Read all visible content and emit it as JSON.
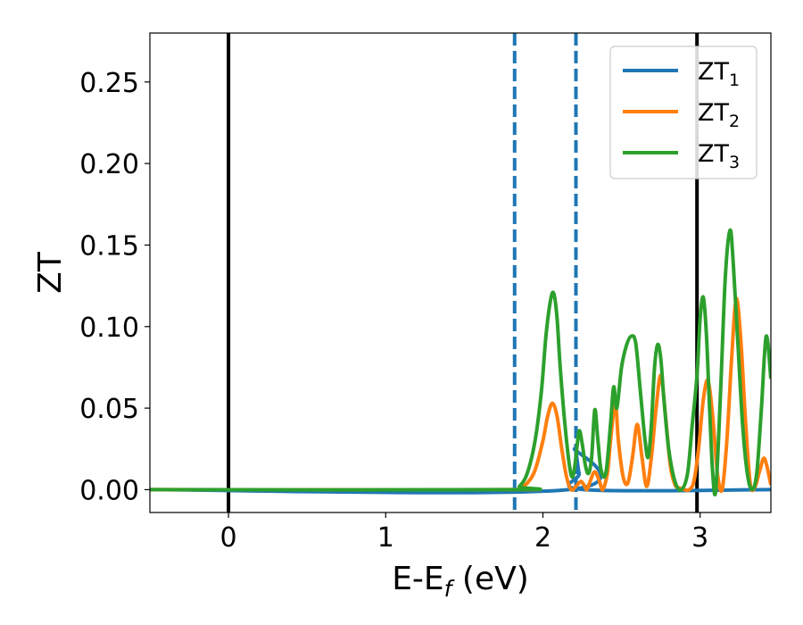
{
  "chart_data": {
    "type": "line",
    "xlabel": {
      "main": "E-E",
      "sub": "f",
      "suffix": " (eV)"
    },
    "ylabel": "ZT",
    "xlim": [
      -0.5,
      3.45
    ],
    "ylim": [
      -0.014,
      0.28
    ],
    "x_ticks": [
      0,
      1,
      2,
      3
    ],
    "x_tick_labels": [
      "0",
      "1",
      "2",
      "3"
    ],
    "y_ticks": [
      0.0,
      0.05,
      0.1,
      0.15,
      0.2,
      0.25
    ],
    "y_tick_labels": [
      "0.00",
      "0.05",
      "0.10",
      "0.15",
      "0.20",
      "0.25"
    ],
    "grid": false,
    "legend_position": "top-right",
    "vertical_lines": [
      {
        "x": 0.0,
        "style": "solid",
        "color": "#000000"
      },
      {
        "x": 2.98,
        "style": "solid",
        "color": "#000000"
      },
      {
        "x": 1.82,
        "style": "dashed",
        "color": "#1f77b4"
      },
      {
        "x": 2.21,
        "style": "dashed",
        "color": "#1f77b4"
      }
    ],
    "series": [
      {
        "name": "ZT",
        "sub": "1",
        "color": "#1f77b4",
        "x": [
          -0.5,
          2.16,
          2.2,
          2.23,
          2.26,
          3.45
        ],
        "y": [
          0.0,
          0.0,
          0.025,
          0.01,
          0.0,
          0.0
        ]
      },
      {
        "name": "ZT",
        "sub": "2",
        "color": "#ff7f0e",
        "x": [
          -0.5,
          1.8,
          1.85,
          1.9,
          1.95,
          2.0,
          2.03,
          2.06,
          2.09,
          2.12,
          2.15,
          2.18,
          2.21,
          2.24,
          2.26,
          2.28,
          2.3,
          2.33,
          2.36,
          2.38,
          2.41,
          2.43,
          2.46,
          2.48,
          2.51,
          2.54,
          2.57,
          2.6,
          2.63,
          2.66,
          2.69,
          2.72,
          2.75,
          2.78,
          2.81,
          2.84,
          2.87,
          2.9,
          2.93,
          2.96,
          2.99,
          3.02,
          3.05,
          3.08,
          3.11,
          3.14,
          3.17,
          3.2,
          3.23,
          3.26,
          3.29,
          3.32,
          3.35,
          3.38,
          3.41,
          3.45
        ],
        "y": [
          0.0,
          0.0,
          0.001,
          0.004,
          0.012,
          0.03,
          0.045,
          0.053,
          0.045,
          0.025,
          0.008,
          0.0,
          0.002,
          0.005,
          0.003,
          0.0,
          0.005,
          0.011,
          0.005,
          0.0,
          0.01,
          0.03,
          0.053,
          0.03,
          0.008,
          0.004,
          0.02,
          0.04,
          0.02,
          0.002,
          0.02,
          0.05,
          0.07,
          0.045,
          0.015,
          0.003,
          0.001,
          0.0,
          0.0,
          0.005,
          0.025,
          0.055,
          0.067,
          0.045,
          0.01,
          0.0,
          0.03,
          0.08,
          0.117,
          0.09,
          0.04,
          0.003,
          0.002,
          0.012,
          0.019,
          0.003
        ]
      },
      {
        "name": "ZT",
        "sub": "3",
        "color": "#2ca02c",
        "x": [
          -0.5,
          1.8,
          1.85,
          1.9,
          1.95,
          1.99,
          2.02,
          2.05,
          2.07,
          2.09,
          2.11,
          2.14,
          2.17,
          2.19,
          2.21,
          2.23,
          2.25,
          2.27,
          2.29,
          2.31,
          2.33,
          2.35,
          2.37,
          2.4,
          2.43,
          2.45,
          2.47,
          2.5,
          2.53,
          2.56,
          2.59,
          2.62,
          2.65,
          2.67,
          2.69,
          2.71,
          2.73,
          2.75,
          2.77,
          2.8,
          2.84,
          2.88,
          2.92,
          2.95,
          2.98,
          3.0,
          3.02,
          3.04,
          3.06,
          3.08,
          3.1,
          3.13,
          3.16,
          3.19,
          3.21,
          3.24,
          3.27,
          3.3,
          3.33,
          3.36,
          3.39,
          3.42,
          3.45
        ],
        "y": [
          0.0,
          0.0,
          0.002,
          0.01,
          0.03,
          0.06,
          0.095,
          0.117,
          0.12,
          0.105,
          0.075,
          0.04,
          0.014,
          0.008,
          0.02,
          0.036,
          0.028,
          0.015,
          0.01,
          0.02,
          0.049,
          0.03,
          0.012,
          0.01,
          0.04,
          0.063,
          0.05,
          0.075,
          0.088,
          0.094,
          0.09,
          0.06,
          0.03,
          0.02,
          0.04,
          0.075,
          0.089,
          0.08,
          0.055,
          0.025,
          0.005,
          0.0,
          0.01,
          0.04,
          0.07,
          0.105,
          0.118,
          0.095,
          0.05,
          0.01,
          0.0,
          0.06,
          0.13,
          0.159,
          0.14,
          0.09,
          0.04,
          0.01,
          0.0,
          0.01,
          0.05,
          0.094,
          0.068
        ]
      }
    ]
  }
}
